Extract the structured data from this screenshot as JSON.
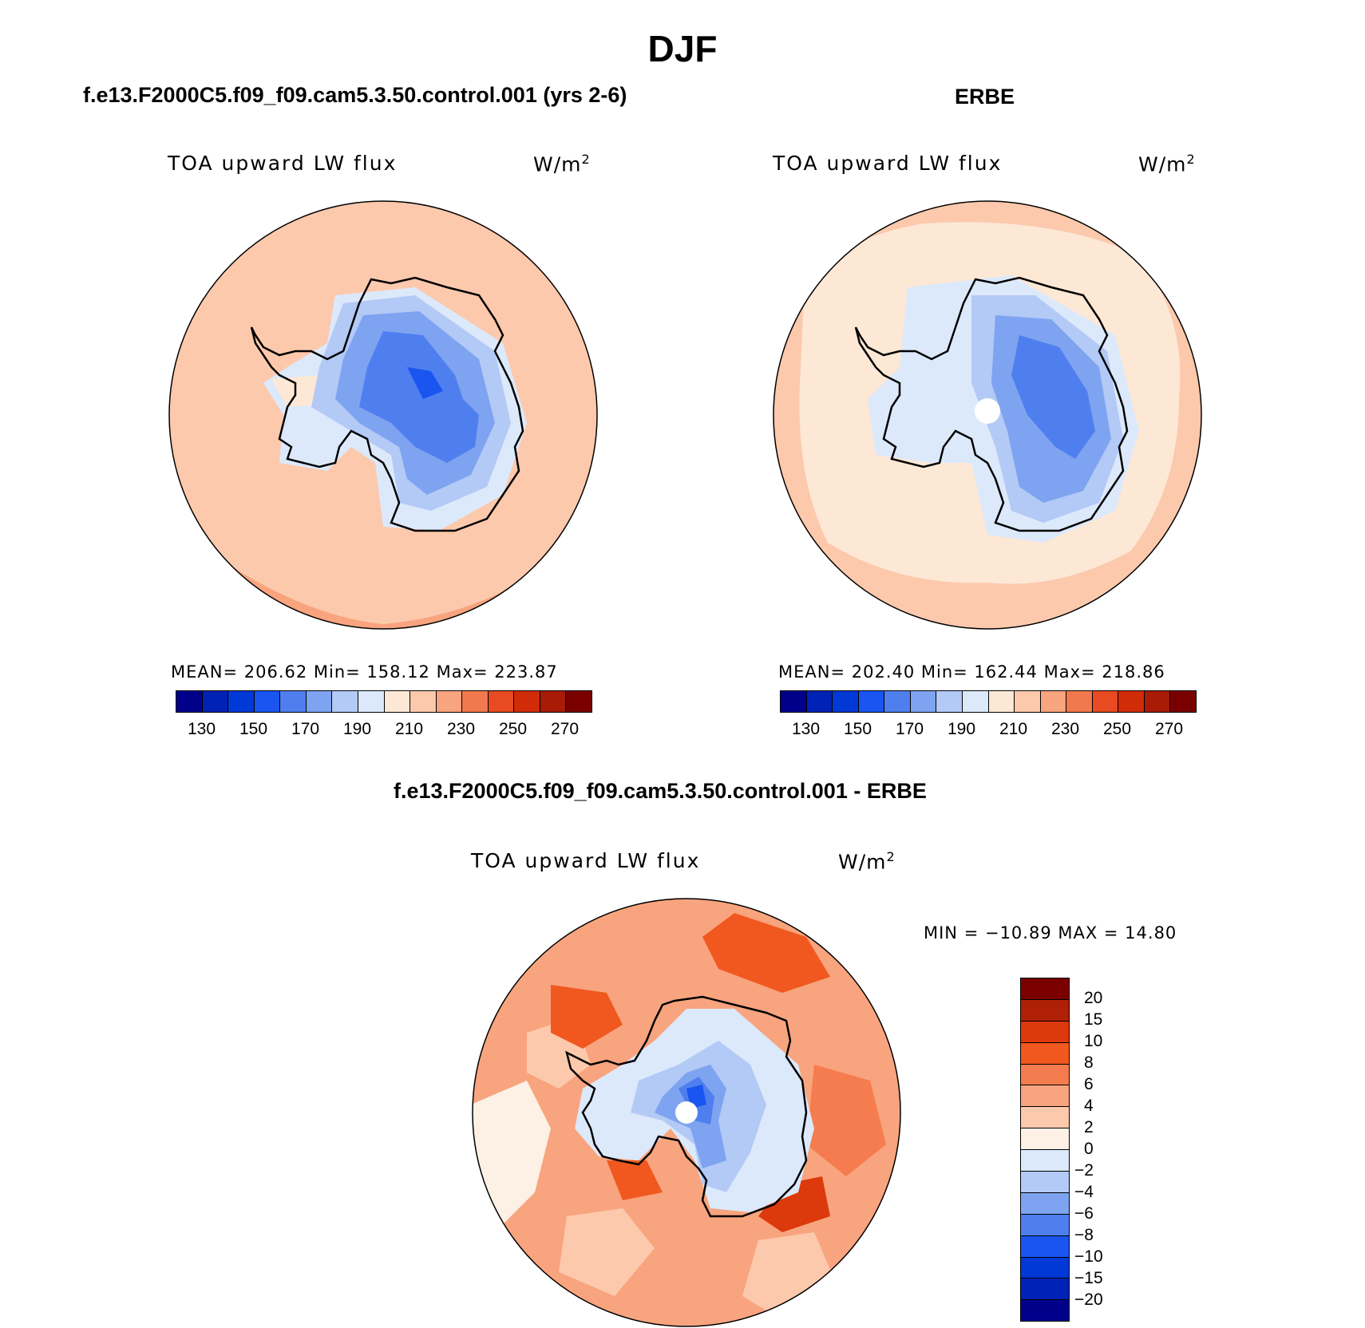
{
  "title": "DJF",
  "panels": {
    "model": {
      "title": "f.e13.F2000C5.f09_f09.cam5.3.50.control.001 (yrs 2-6)",
      "variable": "TOA upward LW flux",
      "units_base": "W/m",
      "units_exp": "2",
      "stats": "MEAN= 206.62   Min= 158.12   Max= 223.87"
    },
    "obs": {
      "title": "ERBE",
      "variable": "TOA upward LW flux",
      "units_base": "W/m",
      "units_exp": "2",
      "stats": "MEAN= 202.40   Min= 162.44   Max= 218.86"
    },
    "diff": {
      "title": "f.e13.F2000C5.f09_f09.cam5.3.50.control.001 - ERBE",
      "variable": "TOA upward LW flux",
      "units_base": "W/m",
      "units_exp": "2",
      "stats": "MIN = −10.89 MAX =   14.80"
    }
  },
  "colorbar_abs": {
    "colors": [
      "#00008b",
      "#0022b5",
      "#0039d6",
      "#1a55f0",
      "#4f7fef",
      "#7ea3f0",
      "#b3c9f6",
      "#dce9fb",
      "#fde8d6",
      "#fcc9ad",
      "#f8a47e",
      "#f2784d",
      "#e84a21",
      "#d12c08",
      "#a81b06",
      "#7a0000"
    ],
    "labels": [
      "130",
      "150",
      "170",
      "190",
      "210",
      "230",
      "250",
      "270"
    ]
  },
  "colorbar_diff": {
    "colors": [
      "#7a0000",
      "#b02006",
      "#dc3a0c",
      "#f0581f",
      "#f47c4f",
      "#f8a47e",
      "#fcc9ad",
      "#fdf0e4",
      "#dce9fb",
      "#b3c9f6",
      "#7ea3f0",
      "#4f7fef",
      "#1a55f0",
      "#0039d6",
      "#0022b5",
      "#00008b"
    ],
    "labels": [
      "20",
      "15",
      "10",
      "8",
      "6",
      "4",
      "2",
      "0",
      "−2",
      "−4",
      "−6",
      "−8",
      "−10",
      "−15",
      "−20"
    ]
  }
}
